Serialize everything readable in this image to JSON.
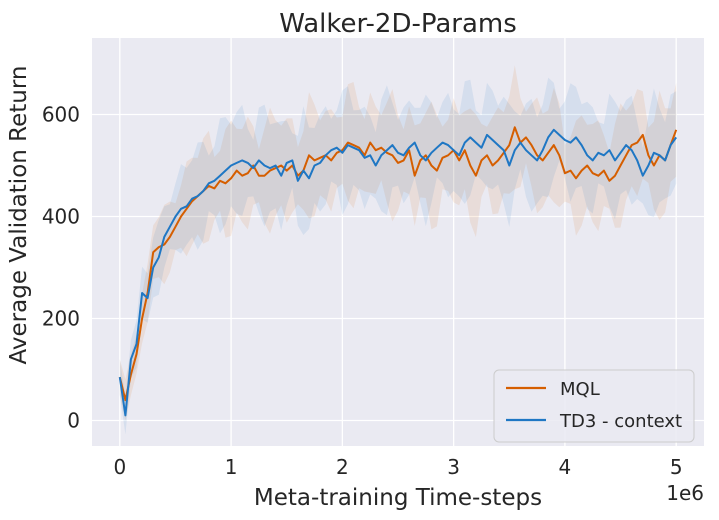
{
  "chart_data": {
    "type": "line",
    "title": "Walker-2D-Params",
    "xlabel": "Meta-training Time-steps",
    "ylabel": "Average Validation Return",
    "x_offset_text": "1e6",
    "xlim": [
      -0.25,
      5.25
    ],
    "ylim": [
      -50,
      750
    ],
    "xticks": [
      0,
      1,
      2,
      3,
      4,
      5
    ],
    "xtick_labels": [
      "0",
      "1",
      "2",
      "3",
      "4",
      "5"
    ],
    "yticks": [
      0,
      200,
      400,
      600
    ],
    "ytick_labels": [
      "0",
      "200",
      "400",
      "600"
    ],
    "grid": true,
    "legend_position": "bottom-right",
    "series": [
      {
        "name": "MQL",
        "color": "#d55e00",
        "x": [
          0,
          0.05,
          0.1,
          0.15,
          0.2,
          0.25,
          0.3,
          0.35,
          0.4,
          0.45,
          0.5,
          0.55,
          0.6,
          0.65,
          0.7,
          0.75,
          0.8,
          0.85,
          0.9,
          0.95,
          1.0,
          1.05,
          1.1,
          1.15,
          1.2,
          1.25,
          1.3,
          1.35,
          1.4,
          1.45,
          1.5,
          1.55,
          1.6,
          1.65,
          1.7,
          1.75,
          1.8,
          1.85,
          1.9,
          1.95,
          2.0,
          2.05,
          2.1,
          2.15,
          2.2,
          2.25,
          2.3,
          2.35,
          2.4,
          2.45,
          2.5,
          2.55,
          2.6,
          2.65,
          2.7,
          2.75,
          2.8,
          2.85,
          2.9,
          2.95,
          3.0,
          3.05,
          3.1,
          3.15,
          3.2,
          3.25,
          3.3,
          3.35,
          3.4,
          3.45,
          3.5,
          3.55,
          3.6,
          3.65,
          3.7,
          3.75,
          3.8,
          3.85,
          3.9,
          3.95,
          4.0,
          4.05,
          4.1,
          4.15,
          4.2,
          4.25,
          4.3,
          4.35,
          4.4,
          4.45,
          4.5,
          4.55,
          4.6,
          4.65,
          4.7,
          4.75,
          4.8,
          4.85,
          4.9,
          4.95,
          5.0
        ],
        "values": [
          85,
          40,
          90,
          130,
          200,
          250,
          330,
          340,
          345,
          360,
          380,
          400,
          415,
          430,
          440,
          450,
          460,
          455,
          470,
          465,
          475,
          490,
          480,
          485,
          500,
          480,
          480,
          490,
          495,
          500,
          490,
          500,
          480,
          490,
          520,
          510,
          515,
          520,
          510,
          525,
          530,
          545,
          540,
          535,
          520,
          545,
          530,
          535,
          525,
          520,
          505,
          510,
          530,
          480,
          510,
          520,
          500,
          490,
          515,
          520,
          530,
          510,
          530,
          500,
          480,
          510,
          520,
          500,
          510,
          525,
          540,
          575,
          545,
          555,
          540,
          520,
          510,
          525,
          540,
          520,
          485,
          490,
          475,
          490,
          500,
          485,
          480,
          490,
          470,
          480,
          500,
          520,
          540,
          545,
          560,
          520,
          500,
          520,
          510,
          540,
          570
        ]
      },
      {
        "name": "TD3 - context",
        "color": "#1f77c4",
        "x": [
          0,
          0.05,
          0.1,
          0.15,
          0.2,
          0.25,
          0.3,
          0.35,
          0.4,
          0.45,
          0.5,
          0.55,
          0.6,
          0.65,
          0.7,
          0.75,
          0.8,
          0.85,
          0.9,
          0.95,
          1.0,
          1.05,
          1.1,
          1.15,
          1.2,
          1.25,
          1.3,
          1.35,
          1.4,
          1.45,
          1.5,
          1.55,
          1.6,
          1.65,
          1.7,
          1.75,
          1.8,
          1.85,
          1.9,
          1.95,
          2.0,
          2.05,
          2.1,
          2.15,
          2.2,
          2.25,
          2.3,
          2.35,
          2.4,
          2.45,
          2.5,
          2.55,
          2.6,
          2.65,
          2.7,
          2.75,
          2.8,
          2.85,
          2.9,
          2.95,
          3.0,
          3.05,
          3.1,
          3.15,
          3.2,
          3.25,
          3.3,
          3.35,
          3.4,
          3.45,
          3.5,
          3.55,
          3.6,
          3.65,
          3.7,
          3.75,
          3.8,
          3.85,
          3.9,
          3.95,
          4.0,
          4.05,
          4.1,
          4.15,
          4.2,
          4.25,
          4.3,
          4.35,
          4.4,
          4.45,
          4.5,
          4.55,
          4.6,
          4.65,
          4.7,
          4.75,
          4.8,
          4.85,
          4.9,
          4.95,
          5.0
        ],
        "values": [
          85,
          10,
          120,
          150,
          250,
          240,
          300,
          320,
          360,
          380,
          400,
          415,
          420,
          435,
          440,
          450,
          465,
          470,
          480,
          490,
          500,
          505,
          510,
          505,
          495,
          510,
          500,
          495,
          500,
          480,
          505,
          510,
          470,
          490,
          475,
          500,
          505,
          520,
          530,
          535,
          525,
          540,
          535,
          530,
          515,
          520,
          500,
          520,
          530,
          540,
          525,
          520,
          535,
          545,
          520,
          510,
          525,
          535,
          545,
          540,
          530,
          520,
          545,
          555,
          545,
          535,
          560,
          550,
          540,
          530,
          500,
          530,
          545,
          530,
          520,
          510,
          530,
          555,
          570,
          560,
          550,
          545,
          555,
          540,
          520,
          510,
          525,
          520,
          530,
          510,
          525,
          540,
          530,
          510,
          480,
          500,
          525,
          520,
          510,
          540,
          555
        ]
      }
    ]
  }
}
